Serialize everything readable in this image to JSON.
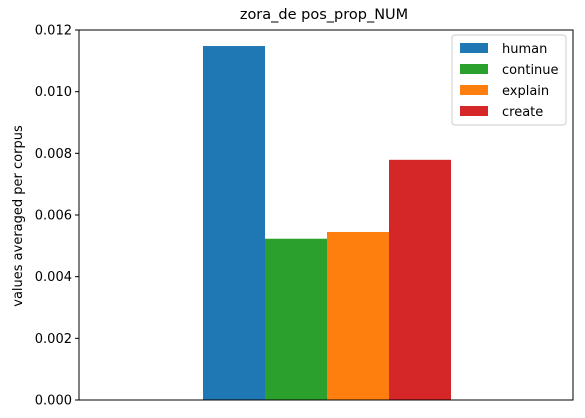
{
  "chart_data": {
    "type": "bar",
    "title": "zora_de pos_prop_NUM",
    "xlabel": "",
    "ylabel": "values averaged per corpus",
    "ylim": [
      0,
      0.012
    ],
    "yticks": [
      "0.000",
      "0.002",
      "0.004",
      "0.006",
      "0.008",
      "0.010",
      "0.012"
    ],
    "legend_position": "top-right",
    "grid": false,
    "series": [
      {
        "name": "human",
        "value": 0.01148,
        "color": "#1f77b4"
      },
      {
        "name": "continue",
        "value": 0.00523,
        "color": "#2ca02c"
      },
      {
        "name": "explain",
        "value": 0.00545,
        "color": "#ff7f0e"
      },
      {
        "name": "create",
        "value": 0.00779,
        "color": "#d62728"
      }
    ]
  }
}
